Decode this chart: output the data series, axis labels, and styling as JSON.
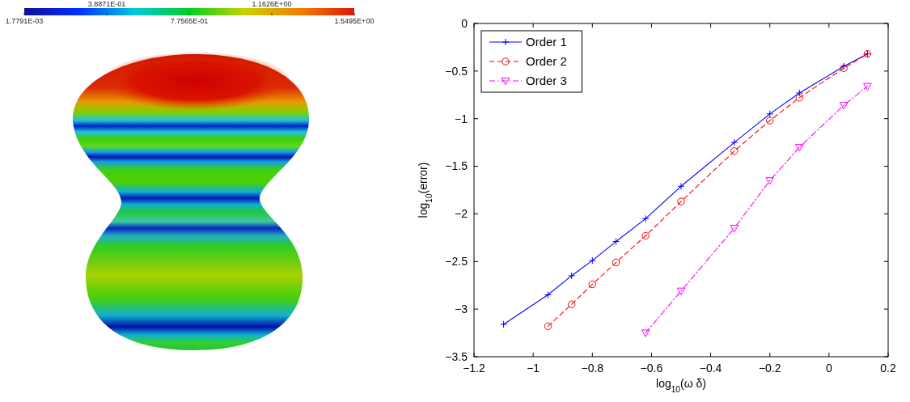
{
  "chart_data": [
    {
      "type": "other",
      "annotations": [
        "1.7791E-03",
        "3.8871E-01",
        "7.7565E-01",
        "1.1626E+00",
        "1.5495E+00"
      ]
    },
    {
      "type": "line",
      "xlabel": "log$_{10}$(ω δ)",
      "ylabel": "log$_{10}$(error)",
      "xlim": [
        -1.2,
        0.2
      ],
      "ylim": [
        -3.5,
        0
      ],
      "xticks": [
        {
          "value": -1.2,
          "label": "−1.2"
        },
        {
          "value": -1,
          "label": "−1"
        },
        {
          "value": -0.8,
          "label": "−0.8"
        },
        {
          "value": -0.6,
          "label": "−0.6"
        },
        {
          "value": -0.4,
          "label": "−0.4"
        },
        {
          "value": -0.2,
          "label": "−0.2"
        },
        0,
        0.2
      ],
      "yticks": [
        {
          "value": -3.5,
          "label": "−3.5"
        },
        {
          "value": -3,
          "label": "−3"
        },
        {
          "value": -2.5,
          "label": "−2.5"
        },
        {
          "value": -2,
          "label": "−2"
        },
        {
          "value": -1.5,
          "label": "−1.5"
        },
        {
          "value": -1,
          "label": "−1"
        },
        {
          "value": -0.5,
          "label": "−0.5"
        },
        0
      ],
      "legend": "top left",
      "series": [
        {
          "name": "Order 1",
          "color": "#0000ff",
          "marker": "cross",
          "line_style": "solid",
          "x": [
            -1.1,
            -0.95,
            -0.87,
            -0.8,
            -0.72,
            -0.62,
            -0.5,
            -0.32,
            -0.2,
            -0.1,
            0.05,
            0.13
          ],
          "values": [
            -3.16,
            -2.85,
            -2.65,
            -2.49,
            -2.29,
            -2.05,
            -1.71,
            -1.25,
            -0.95,
            -0.73,
            -0.45,
            -0.32
          ]
        },
        {
          "name": "Order 2",
          "color": "#ff0000",
          "marker": "circle",
          "line_style": "dashed",
          "x": [
            -0.95,
            -0.87,
            -0.8,
            -0.72,
            -0.62,
            -0.5,
            -0.32,
            -0.2,
            -0.1,
            0.05,
            0.13
          ],
          "values": [
            -3.18,
            -2.95,
            -2.74,
            -2.51,
            -2.23,
            -1.87,
            -1.34,
            -1.02,
            -0.78,
            -0.47,
            -0.32
          ]
        },
        {
          "name": "Order 3",
          "color": "#ff00ff",
          "marker": "triangle",
          "line_style": "dashdot",
          "x": [
            -0.62,
            -0.5,
            -0.32,
            -0.2,
            -0.1,
            0.05,
            0.13
          ],
          "values": [
            -3.25,
            -2.81,
            -2.15,
            -1.65,
            -1.3,
            -0.86,
            -0.66
          ]
        }
      ]
    }
  ]
}
